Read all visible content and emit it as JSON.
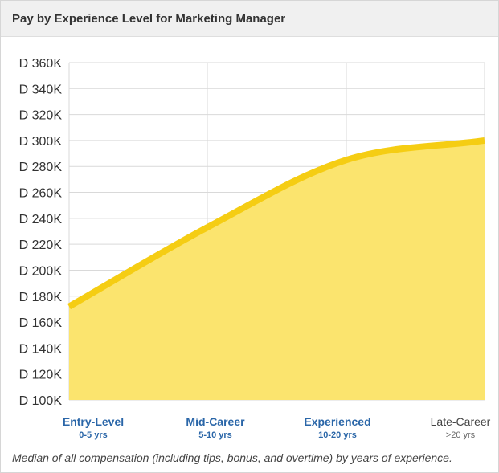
{
  "header": {
    "title": "Pay by Experience Level for Marketing Manager"
  },
  "caption": "Median of all compensation (including tips, bonus, and overtime) by years of experience.",
  "colors": {
    "line": "#f5cd13",
    "fill": "#fbe46e",
    "grid": "#d9d9d9",
    "axis_text": "#333333",
    "category_link": "#2a66a8"
  },
  "chart_data": {
    "type": "area",
    "title": "Pay by Experience Level for Marketing Manager",
    "categories": [
      "Entry-Level",
      "Mid-Career",
      "Experienced",
      "Late-Career"
    ],
    "category_sublabels": [
      "0-5 yrs",
      "5-10 yrs",
      "10-20 yrs",
      ">20 yrs"
    ],
    "values": [
      172000,
      233000,
      285000,
      300000
    ],
    "ylim": [
      100000,
      360000
    ],
    "yticks": [
      "D 360K",
      "D 340K",
      "D 320K",
      "D 300K",
      "D 280K",
      "D 260K",
      "D 240K",
      "D 220K",
      "D 200K",
      "D 180K",
      "D 160K",
      "D 140K",
      "D 120K",
      "D 100K"
    ],
    "grid": true,
    "legend": "none"
  }
}
